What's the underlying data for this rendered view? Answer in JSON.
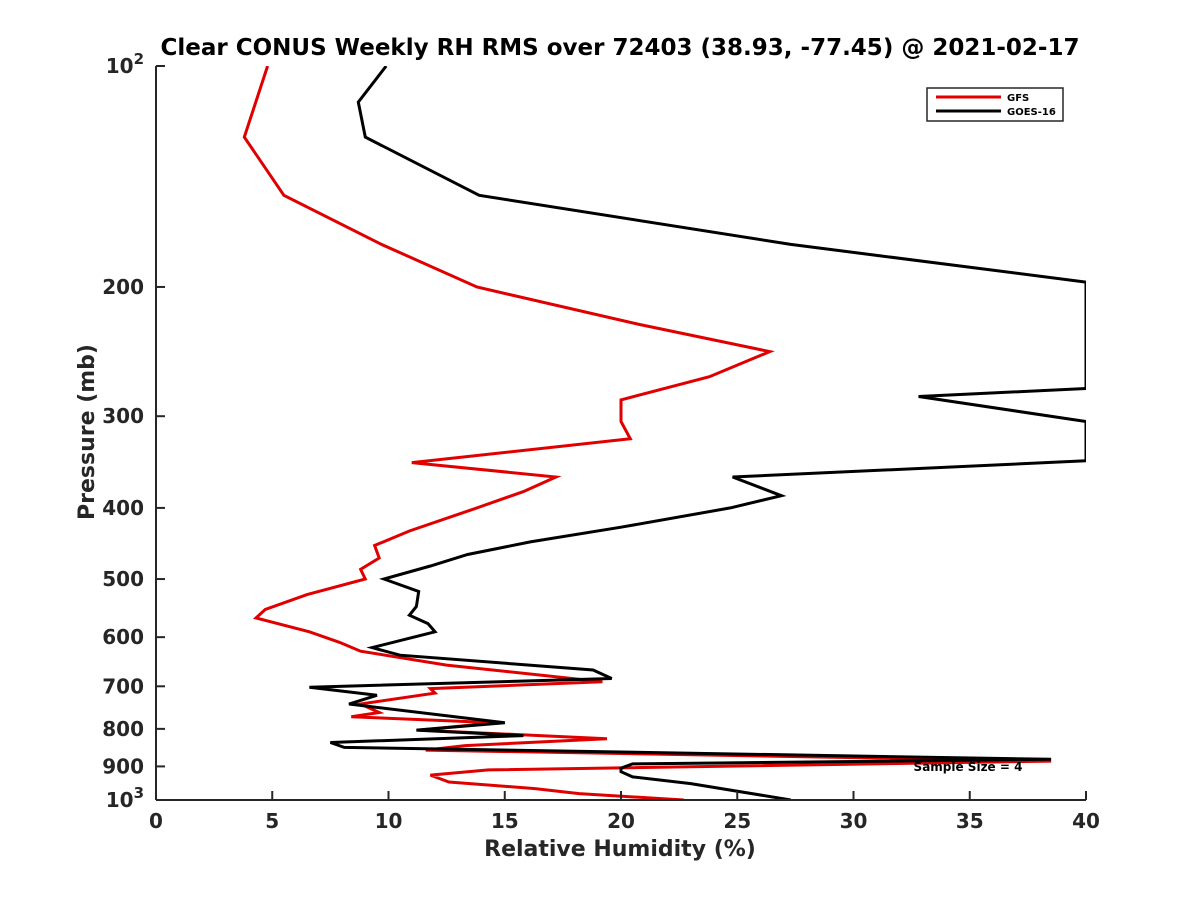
{
  "chart_data": {
    "type": "line",
    "title": "Clear CONUS Weekly RH RMS over 72403 (38.93, -77.45) @ 2021-02-17",
    "xlabel": "Relative Humidity (%)",
    "ylabel": "Pressure (mb)",
    "xlim": [
      0,
      40
    ],
    "ylim": [
      100,
      1000
    ],
    "yscale": "log",
    "y_reversed": true,
    "grid": false,
    "legend_position": "top-right",
    "x_ticks": [
      "0",
      "5",
      "10",
      "15",
      "20",
      "25",
      "30",
      "35",
      "40"
    ],
    "x_tick_values": [
      0,
      5,
      10,
      15,
      20,
      25,
      30,
      35,
      40
    ],
    "y_ticks": [
      {
        "value": 100,
        "base": "10",
        "exp": "2"
      },
      {
        "value": 200,
        "label": "200"
      },
      {
        "value": 300,
        "label": "300"
      },
      {
        "value": 400,
        "label": "400"
      },
      {
        "value": 500,
        "label": "500"
      },
      {
        "value": 600,
        "label": "600"
      },
      {
        "value": 700,
        "label": "700"
      },
      {
        "value": 800,
        "label": "800"
      },
      {
        "value": 900,
        "label": "900"
      },
      {
        "value": 1000,
        "base": "10",
        "exp": "3"
      }
    ],
    "annotation": "Sample Size = 4",
    "series": [
      {
        "name": "GFS",
        "color": "#e00000",
        "points": [
          [
            4.8,
            100
          ],
          [
            3.8,
            125
          ],
          [
            5.5,
            150
          ],
          [
            9.7,
            175
          ],
          [
            13.8,
            200
          ],
          [
            20.8,
            225
          ],
          [
            26.4,
            245
          ],
          [
            23.8,
            265
          ],
          [
            20.0,
            285
          ],
          [
            20.0,
            305
          ],
          [
            20.4,
            322
          ],
          [
            11.0,
            347
          ],
          [
            17.2,
            363
          ],
          [
            15.8,
            380
          ],
          [
            13.8,
            400
          ],
          [
            10.9,
            430
          ],
          [
            9.4,
            450
          ],
          [
            9.6,
            468
          ],
          [
            8.8,
            485
          ],
          [
            9.0,
            500
          ],
          [
            6.5,
            525
          ],
          [
            4.7,
            550
          ],
          [
            4.3,
            565
          ],
          [
            6.6,
            590
          ],
          [
            7.9,
            610
          ],
          [
            8.8,
            627
          ],
          [
            12.5,
            655
          ],
          [
            19.2,
            690
          ],
          [
            11.8,
            705
          ],
          [
            12.0,
            715
          ],
          [
            8.8,
            740
          ],
          [
            9.6,
            760
          ],
          [
            8.4,
            770
          ],
          [
            14.6,
            785
          ],
          [
            11.3,
            803
          ],
          [
            19.4,
            825
          ],
          [
            13.3,
            843
          ],
          [
            11.6,
            855
          ],
          [
            38.5,
            885
          ],
          [
            14.3,
            910
          ],
          [
            11.8,
            925
          ],
          [
            12.6,
            945
          ],
          [
            16.3,
            965
          ],
          [
            18.2,
            980
          ],
          [
            22.7,
            1000
          ]
        ]
      },
      {
        "name": "GOES-16",
        "color": "#000000",
        "points": [
          [
            9.9,
            100
          ],
          [
            8.7,
            112
          ],
          [
            9.0,
            125
          ],
          [
            13.9,
            150
          ],
          [
            27.3,
            175
          ],
          [
            40.0,
            197
          ],
          [
            40.0,
            275
          ],
          [
            32.8,
            282
          ],
          [
            40.0,
            305
          ],
          [
            40.0,
            345
          ],
          [
            24.8,
            363
          ],
          [
            26.9,
            385
          ],
          [
            24.7,
            400
          ],
          [
            20.0,
            425
          ],
          [
            16.1,
            445
          ],
          [
            13.4,
            463
          ],
          [
            11.8,
            480
          ],
          [
            9.8,
            500
          ],
          [
            11.3,
            520
          ],
          [
            11.2,
            545
          ],
          [
            10.9,
            560
          ],
          [
            11.7,
            575
          ],
          [
            12.0,
            590
          ],
          [
            9.3,
            620
          ],
          [
            10.5,
            635
          ],
          [
            18.8,
            665
          ],
          [
            19.6,
            683
          ],
          [
            6.6,
            702
          ],
          [
            9.5,
            720
          ],
          [
            8.3,
            740
          ],
          [
            15.0,
            785
          ],
          [
            11.2,
            803
          ],
          [
            15.8,
            817
          ],
          [
            7.5,
            835
          ],
          [
            8.1,
            848
          ],
          [
            38.5,
            880
          ],
          [
            20.5,
            893
          ],
          [
            20.0,
            905
          ],
          [
            20.0,
            915
          ],
          [
            20.5,
            930
          ],
          [
            23.0,
            950
          ],
          [
            27.3,
            1000
          ]
        ]
      }
    ]
  }
}
